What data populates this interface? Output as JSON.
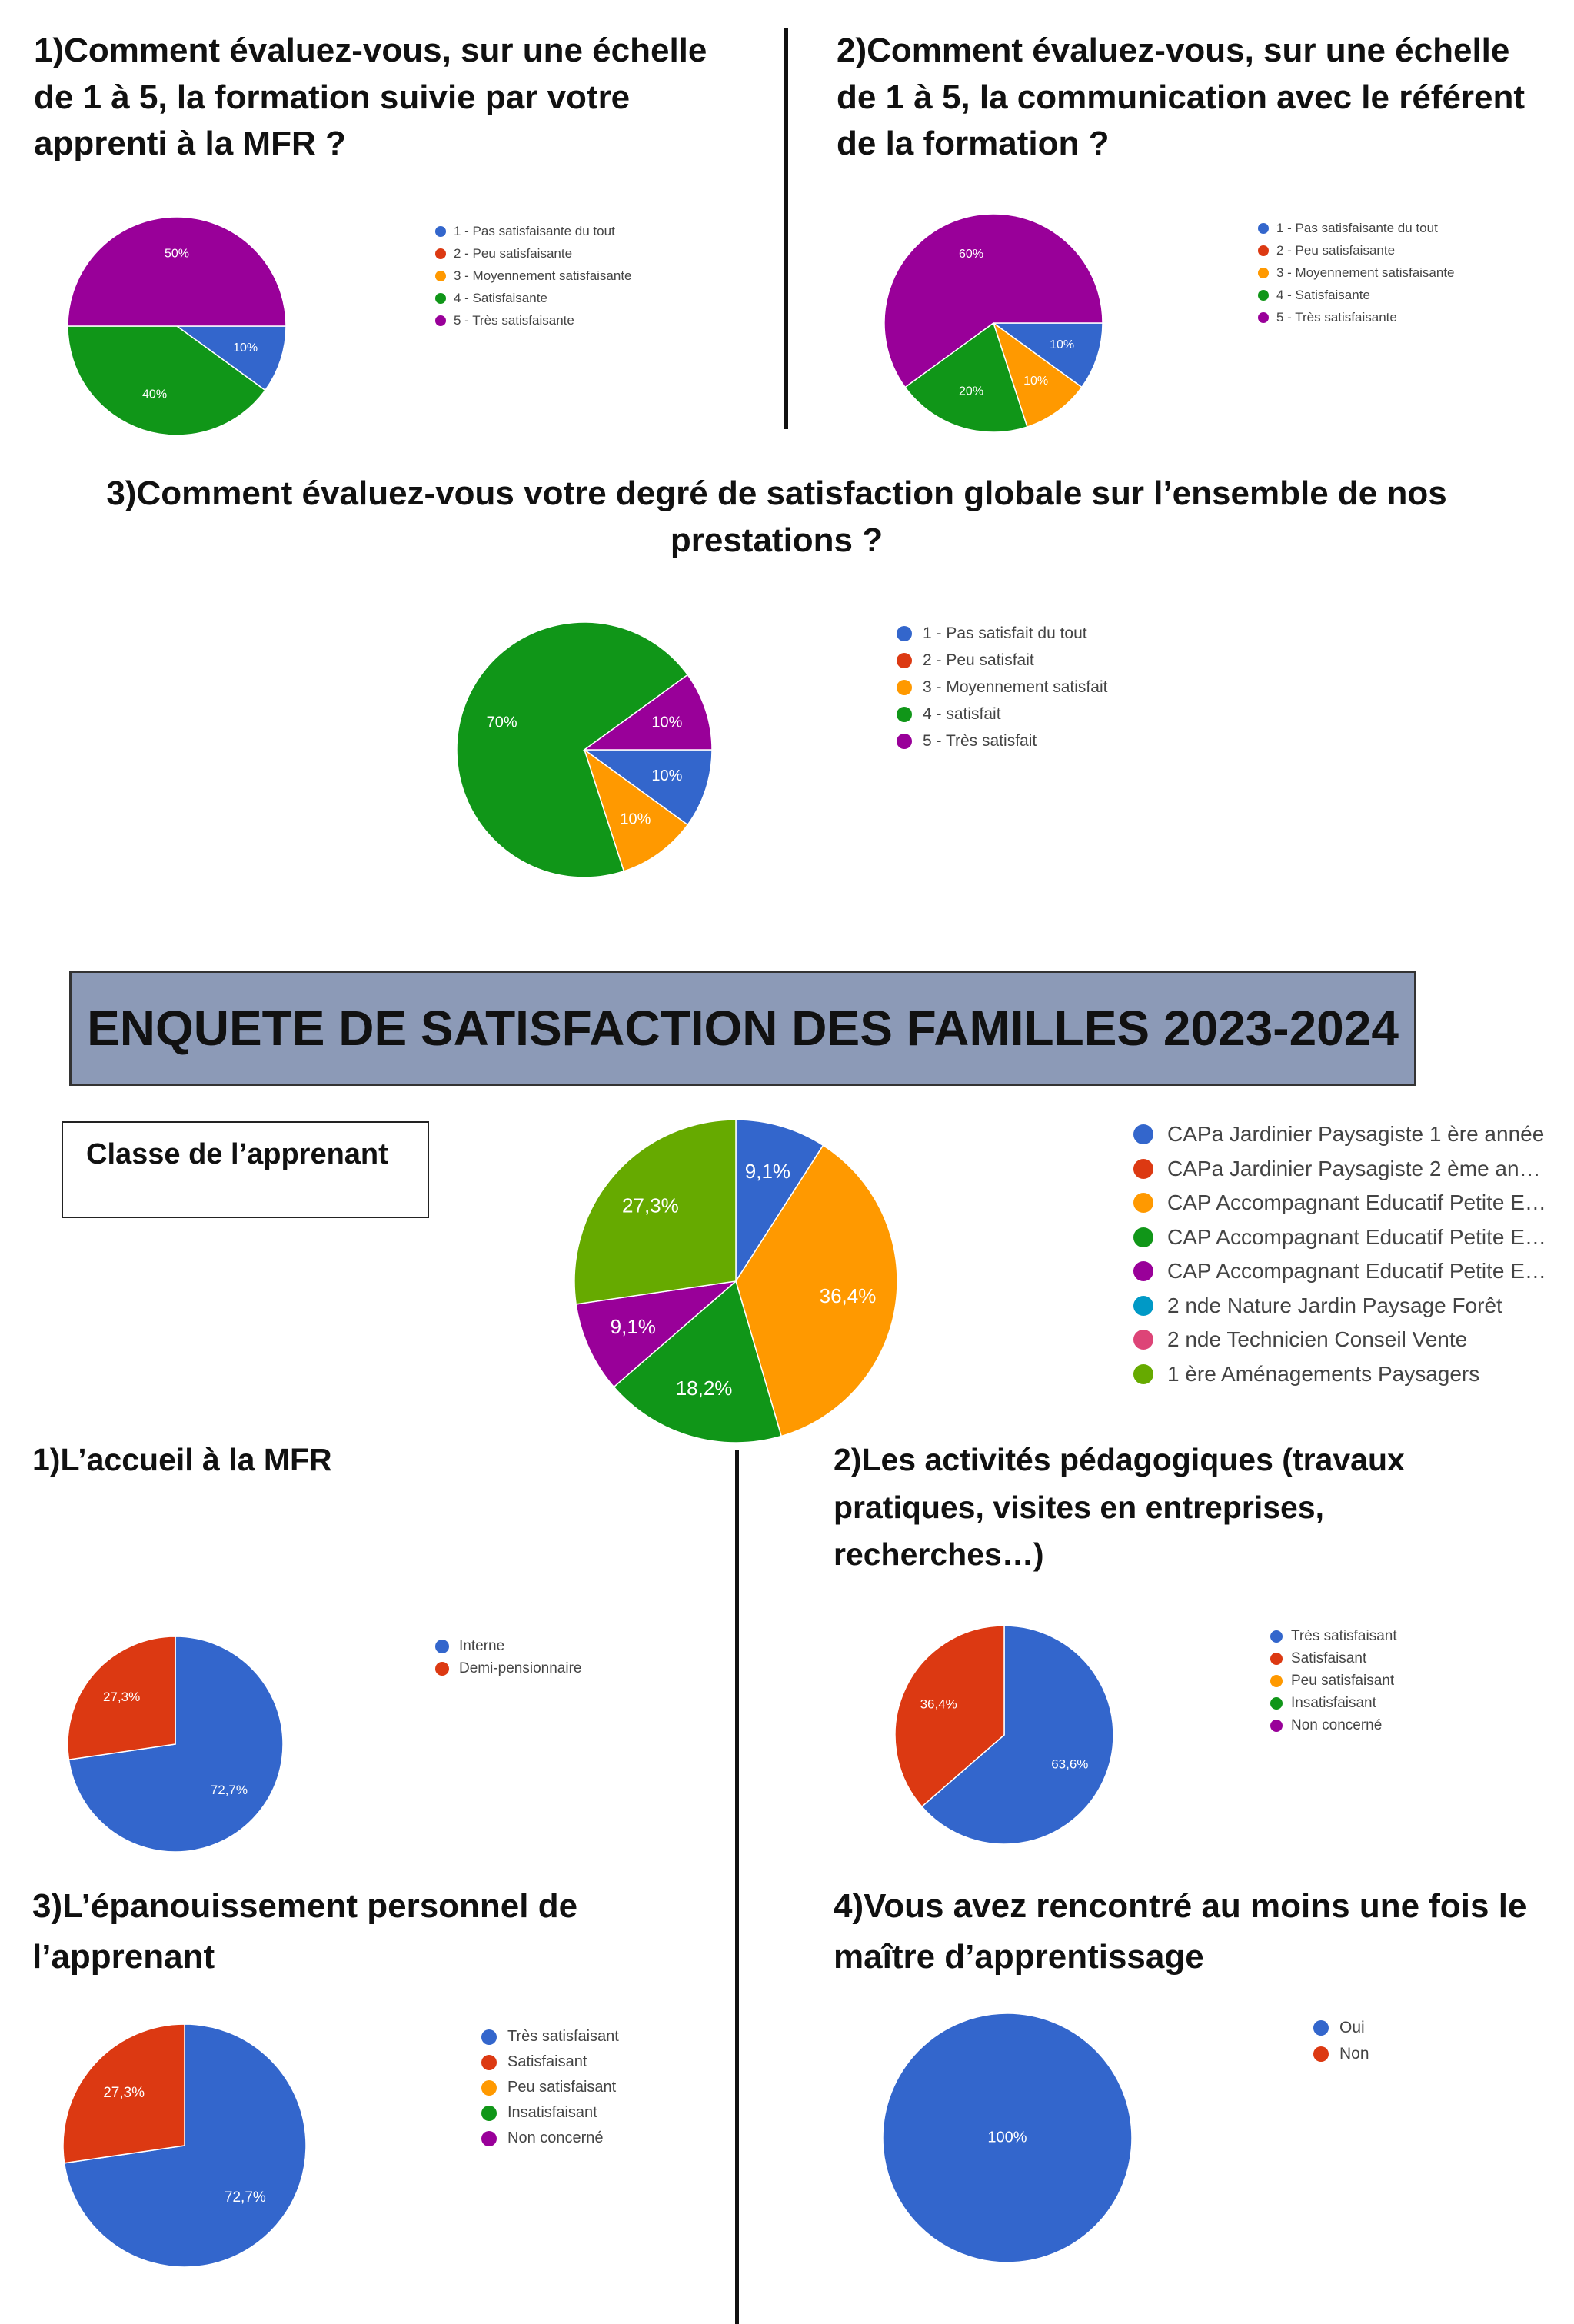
{
  "banner_title": "ENQUETE DE SATISFACTION DES FAMILLES 2023-2024",
  "class_box_label": "Classe de l’apprenant",
  "questions": {
    "q1": "1)Comment évaluez-vous, sur une échelle de 1 à 5, la formation suivie par votre apprenti à la MFR ?",
    "q2": "2)Comment évaluez-vous, sur une échelle de 1 à 5, la communication avec le référent de la formation ?",
    "q3": "3)Comment évaluez-vous votre degré de satisfaction globale sur l’ensemble de nos prestations ?",
    "qa": "1)L’accueil à la MFR",
    "qb": "2)Les activités pédagogiques (travaux pratiques, visites en entreprises, recherches…)",
    "qc": "3)L’épanouissement personnel de l’apprenant",
    "qd": "4)Vous avez rencontré au moins une fois le maître d’apprentissage"
  },
  "colors": {
    "blue": "#3366cc",
    "red": "#dc3912",
    "orange": "#ff9900",
    "green": "#109618",
    "purple": "#990099",
    "cyan": "#0099c6",
    "pink": "#dd4477",
    "lime": "#66aa00",
    "darkblue": "#316395"
  },
  "chart_data": [
    {
      "id": "pie1",
      "type": "pie",
      "title": "1)Comment évaluez-vous, sur une échelle de 1 à 5, la formation suivie par votre apprenti à la MFR ?",
      "categories": [
        "1 - Pas satisfaisante du tout",
        "2 - Peu satisfaisante",
        "3 - Moyennement satisfaisante",
        "4 - Satisfaisante",
        "5 - Très satisfaisante"
      ],
      "values": [
        10,
        0,
        0,
        40,
        50
      ],
      "value_labels": [
        "10%",
        "",
        "",
        "40%",
        "50%"
      ],
      "colors": [
        "#3366cc",
        "#dc3912",
        "#ff9900",
        "#109618",
        "#990099"
      ],
      "legend": "right"
    },
    {
      "id": "pie2",
      "type": "pie",
      "title": "2)Comment évaluez-vous, sur une échelle de 1 à 5, la communication avec le référent de la formation ?",
      "categories": [
        "1 - Pas satisfaisante du tout",
        "2 - Peu satisfaisante",
        "3 - Moyennement satisfaisante",
        "4 - Satisfaisante",
        "5 - Très satisfaisante"
      ],
      "values": [
        10,
        0,
        10,
        20,
        60
      ],
      "value_labels": [
        "10%",
        "",
        "10%",
        "20%",
        "60%"
      ],
      "colors": [
        "#3366cc",
        "#dc3912",
        "#ff9900",
        "#109618",
        "#990099"
      ],
      "legend": "right"
    },
    {
      "id": "pie3",
      "type": "pie",
      "title": "3)Comment évaluez-vous votre degré de satisfaction globale sur l’ensemble de nos prestations ?",
      "categories": [
        "1 - Pas satisfait du tout",
        "2 - Peu satisfait",
        "3 - Moyennement satisfait",
        "4 - satisfait",
        "5 - Très satisfait"
      ],
      "values": [
        10,
        0,
        10,
        70,
        10
      ],
      "value_labels": [
        "10%",
        "",
        "10%",
        "70%",
        "10%"
      ],
      "colors": [
        "#3366cc",
        "#dc3912",
        "#ff9900",
        "#109618",
        "#990099"
      ],
      "legend": "right"
    },
    {
      "id": "pieClass",
      "type": "pie",
      "title": "Classe de l’apprenant",
      "categories": [
        "CAPa Jardinier Paysagiste 1 ère année",
        "CAPa Jardinier Paysagiste 2 ème an…",
        "CAP Accompagnant Educatif Petite E…",
        "CAP Accompagnant Educatif Petite E…",
        "CAP Accompagnant Educatif Petite E…",
        "2 nde Nature Jardin Paysage Forêt",
        "2 nde Technicien Conseil Vente",
        "1 ère Aménagements Paysagers"
      ],
      "values": [
        9.1,
        0,
        36.4,
        18.2,
        9.1,
        0,
        0,
        27.3
      ],
      "value_labels": [
        "9,1%",
        "",
        "36,4%",
        "18,2%",
        "9,1%",
        "",
        "",
        "27,3%"
      ],
      "colors": [
        "#3366cc",
        "#dc3912",
        "#ff9900",
        "#109618",
        "#990099",
        "#0099c6",
        "#dd4477",
        "#66aa00"
      ],
      "legend": "right"
    },
    {
      "id": "pieA",
      "type": "pie",
      "title": "1)L’accueil à la MFR",
      "categories": [
        "Interne",
        "Demi-pensionnaire"
      ],
      "values": [
        72.7,
        27.3
      ],
      "value_labels": [
        "72,7%",
        "27,3%"
      ],
      "colors": [
        "#3366cc",
        "#dc3912"
      ],
      "legend": "right"
    },
    {
      "id": "pieB",
      "type": "pie",
      "title": "2)Les activités pédagogiques (travaux pratiques, visites en entreprises, recherches…)",
      "categories": [
        "Très satisfaisant",
        "Satisfaisant",
        "Peu satisfaisant",
        "Insatisfaisant",
        "Non concerné"
      ],
      "values": [
        63.6,
        36.4,
        0,
        0,
        0
      ],
      "value_labels": [
        "63,6%",
        "36,4%",
        "",
        "",
        ""
      ],
      "colors": [
        "#3366cc",
        "#dc3912",
        "#ff9900",
        "#109618",
        "#990099"
      ],
      "legend": "right"
    },
    {
      "id": "pieC",
      "type": "pie",
      "title": "3)L’épanouissement personnel de l’apprenant",
      "categories": [
        "Très satisfaisant",
        "Satisfaisant",
        "Peu satisfaisant",
        "Insatisfaisant",
        "Non concerné"
      ],
      "values": [
        72.7,
        27.3,
        0,
        0,
        0
      ],
      "value_labels": [
        "72,7%",
        "27,3%",
        "",
        "",
        ""
      ],
      "colors": [
        "#3366cc",
        "#dc3912",
        "#ff9900",
        "#109618",
        "#990099"
      ],
      "legend": "right"
    },
    {
      "id": "pieD",
      "type": "pie",
      "title": "4)Vous avez rencontré au moins une fois le maître d’apprentissage",
      "categories": [
        "Oui",
        "Non"
      ],
      "values": [
        100,
        0
      ],
      "value_labels": [
        "100%",
        ""
      ],
      "colors": [
        "#3366cc",
        "#dc3912"
      ],
      "legend": "right"
    }
  ]
}
